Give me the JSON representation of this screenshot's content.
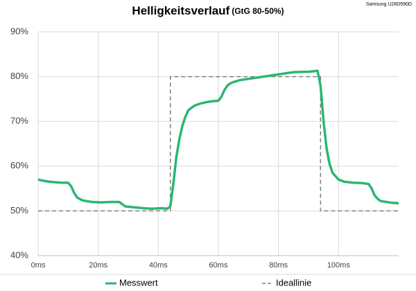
{
  "chart_data": {
    "type": "line",
    "title": "Helligkeitsverlauf",
    "subtitle": "(GtG 80-50%)",
    "note": "Samsung U28D590D",
    "xlim": [
      0,
      120
    ],
    "xticks": [
      {
        "value": 0,
        "label": "0ms"
      },
      {
        "value": 20,
        "label": "20ms"
      },
      {
        "value": 40,
        "label": "40ms"
      },
      {
        "value": 60,
        "label": "60ms"
      },
      {
        "value": 80,
        "label": "80ms"
      },
      {
        "value": 100,
        "label": "100ms"
      }
    ],
    "ylim": [
      40,
      90
    ],
    "yticks": [
      {
        "value": 40,
        "label": "40%"
      },
      {
        "value": 50,
        "label": "50%"
      },
      {
        "value": 60,
        "label": "60%"
      },
      {
        "value": 70,
        "label": "70%"
      },
      {
        "value": 80,
        "label": "80%"
      },
      {
        "value": 90,
        "label": "90%"
      }
    ],
    "grid": true,
    "legend": "bottom",
    "series": [
      {
        "name": "Messwert",
        "color": "#2bb673",
        "dashed": false,
        "x": [
          0,
          2,
          4,
          6,
          8,
          10,
          11,
          12,
          13,
          14,
          15,
          18,
          21,
          24,
          27,
          28,
          29,
          32,
          35,
          38,
          41,
          43,
          44,
          44.5,
          45,
          46,
          47,
          48,
          49,
          50,
          52,
          54,
          56,
          58,
          60,
          61,
          62,
          63,
          64,
          65,
          67,
          70,
          75,
          80,
          85,
          90,
          93,
          94,
          95,
          96,
          97,
          98,
          100,
          102,
          105,
          108,
          110,
          111,
          112,
          113,
          114,
          116,
          118,
          120
        ],
        "values": [
          57,
          56.7,
          56.5,
          56.4,
          56.3,
          56.3,
          55.5,
          54,
          53,
          52.6,
          52.3,
          52,
          51.9,
          52,
          52,
          51.5,
          51,
          50.8,
          50.6,
          50.5,
          50.6,
          50.5,
          51,
          53.5,
          56,
          62,
          66,
          69,
          71,
          72.5,
          73.5,
          74,
          74.3,
          74.5,
          74.6,
          75.5,
          77,
          78,
          78.5,
          78.8,
          79.2,
          79.5,
          80,
          80.5,
          81,
          81.1,
          81.3,
          78,
          70,
          64,
          60.5,
          58.5,
          57,
          56.5,
          56.3,
          56.2,
          56,
          55,
          53.5,
          52.7,
          52.2,
          52,
          51.8,
          51.7
        ]
      },
      {
        "name": "Ideallinie",
        "color": "#7f7f7f",
        "dashed": true,
        "x": [
          0,
          44,
          44,
          94,
          94,
          120
        ],
        "values": [
          50,
          50,
          80,
          80,
          50,
          50
        ]
      }
    ]
  }
}
